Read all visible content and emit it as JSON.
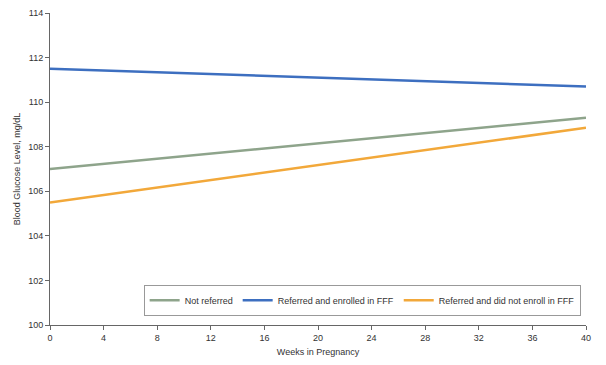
{
  "chart_data": {
    "type": "line",
    "x_label": "Weeks in Pregnancy",
    "y_label": "Blood Glucose Level, mg/dL",
    "x": [
      0,
      40
    ],
    "series": [
      {
        "name": "Not referred",
        "color": "#8ea48b",
        "values": [
          107.0,
          109.3
        ]
      },
      {
        "name": "Referred and enrolled in FFF",
        "color": "#3d6fc0",
        "values": [
          111.5,
          110.7
        ]
      },
      {
        "name": "Referred and did not enroll in FFF",
        "color": "#f2a83a",
        "values": [
          105.5,
          108.85
        ]
      }
    ],
    "xlim": [
      0,
      40
    ],
    "xticks": [
      0,
      4,
      8,
      12,
      16,
      20,
      24,
      28,
      32,
      36,
      40
    ],
    "ylim": [
      100,
      114
    ],
    "yticks": [
      100,
      102,
      104,
      106,
      108,
      110,
      112,
      114
    ],
    "grid": false,
    "legend": "bottom right"
  }
}
